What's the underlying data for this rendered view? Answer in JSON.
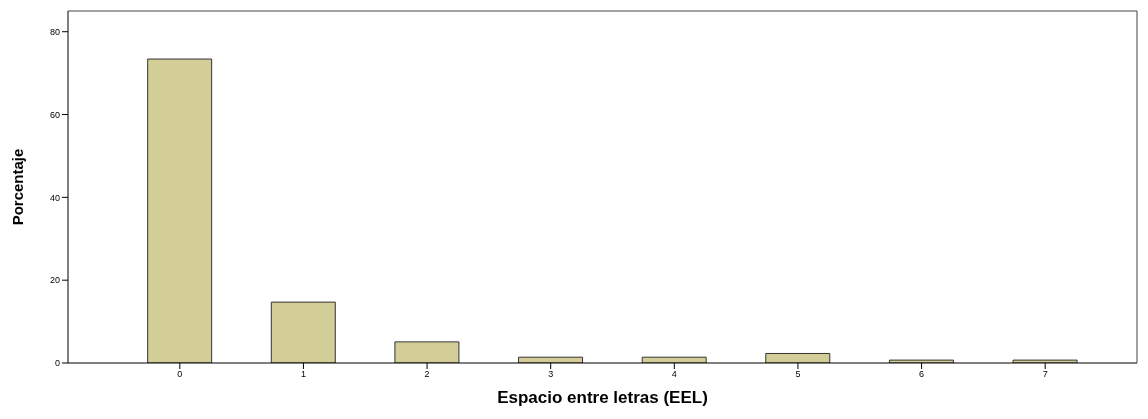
{
  "chart_data": {
    "type": "bar",
    "xlabel": "Espacio entre letras (EEL)",
    "ylabel": "Porcentaje",
    "categories": [
      "0",
      "1",
      "2",
      "3",
      "4",
      "5",
      "6",
      "7"
    ],
    "values": [
      73.4,
      14.7,
      5.1,
      1.4,
      1.4,
      2.3,
      0.7,
      0.7
    ],
    "color": "#d3ce97",
    "ylim": [
      0,
      85
    ],
    "yticks": [
      0,
      20,
      40,
      60,
      80
    ],
    "grid": false
  }
}
